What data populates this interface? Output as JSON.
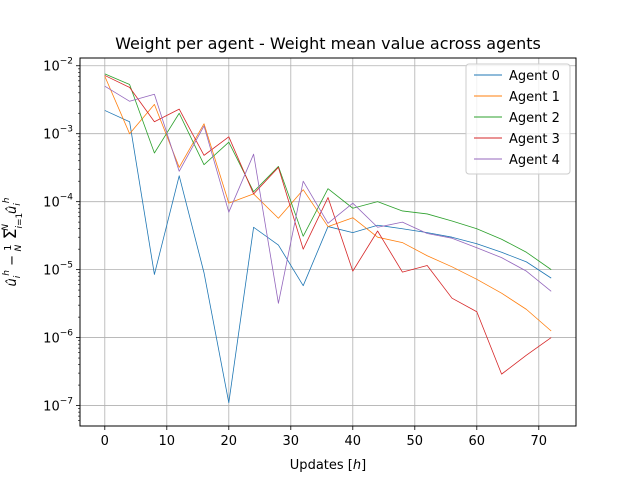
{
  "chart_data": {
    "type": "line",
    "title": "Weight per agent - Weight mean value across agents",
    "xlabel": "Updates [h]",
    "ylabel": "û_i^h − (1/N) Σ_{i=1}^{N} û_i^h",
    "xlim": [
      -4,
      76
    ],
    "ylim": [
      5e-08,
      0.013
    ],
    "yscale": "log",
    "grid": true,
    "legend_position": "top-right",
    "x_ticks": [
      0,
      10,
      20,
      30,
      40,
      50,
      60,
      70
    ],
    "x_tick_labels": [
      "0",
      "10",
      "20",
      "30",
      "40",
      "50",
      "60",
      "70"
    ],
    "y_ticks": [
      1e-07,
      1e-06,
      1e-05,
      0.0001,
      0.001,
      0.01
    ],
    "y_tick_labels": [
      {
        "base": "10",
        "exp": "−7"
      },
      {
        "base": "10",
        "exp": "−6"
      },
      {
        "base": "10",
        "exp": "−5"
      },
      {
        "base": "10",
        "exp": "−4"
      },
      {
        "base": "10",
        "exp": "−3"
      },
      {
        "base": "10",
        "exp": "−2"
      }
    ],
    "x": [
      0,
      4,
      8,
      12,
      16,
      20,
      24,
      28,
      32,
      36,
      40,
      44,
      48,
      52,
      56,
      60,
      64,
      68,
      72
    ],
    "series": [
      {
        "name": "Agent 0",
        "color": "#1f77b4",
        "values": [
          0.0022,
          0.0015,
          8.5e-06,
          0.00024,
          9e-06,
          1.1e-07,
          4.2e-05,
          2.3e-05,
          5.8e-06,
          4.3e-05,
          3.5e-05,
          4.5e-05,
          4e-05,
          3.5e-05,
          3e-05,
          2.4e-05,
          1.8e-05,
          1.3e-05,
          7.5e-06
        ]
      },
      {
        "name": "Agent 1",
        "color": "#ff7f0e",
        "values": [
          0.007,
          0.001,
          0.0027,
          0.00032,
          0.0014,
          9.5e-05,
          0.00013,
          5.7e-05,
          0.00015,
          4.3e-05,
          5.8e-05,
          3e-05,
          2.5e-05,
          1.6e-05,
          1.1e-05,
          7.2e-06,
          4.5e-06,
          2.6e-06,
          1.25e-06
        ]
      },
      {
        "name": "Agent 2",
        "color": "#2ca02c",
        "values": [
          0.0076,
          0.0053,
          0.00052,
          0.002,
          0.00035,
          0.00075,
          0.00014,
          0.00033,
          3.1e-05,
          0.000155,
          8e-05,
          0.0001,
          7.3e-05,
          6.6e-05,
          5.2e-05,
          4e-05,
          2.8e-05,
          1.8e-05,
          1e-05
        ]
      },
      {
        "name": "Agent 3",
        "color": "#d62728",
        "values": [
          0.0072,
          0.0048,
          0.0015,
          0.0023,
          0.00048,
          0.0009,
          0.00013,
          0.00032,
          2e-05,
          0.000115,
          9.5e-06,
          3.7e-05,
          9.2e-06,
          1.15e-05,
          3.8e-06,
          2.4e-06,
          2.9e-07,
          5.5e-07,
          1e-06
        ]
      },
      {
        "name": "Agent 4",
        "color": "#9467bd",
        "values": [
          0.005,
          0.003,
          0.0038,
          0.00028,
          0.0013,
          7e-05,
          0.0005,
          3.2e-06,
          0.0002,
          4.8e-05,
          9.5e-05,
          4.2e-05,
          5e-05,
          3.4e-05,
          2.9e-05,
          2.1e-05,
          1.5e-05,
          9.5e-06,
          4.8e-06
        ]
      }
    ]
  }
}
